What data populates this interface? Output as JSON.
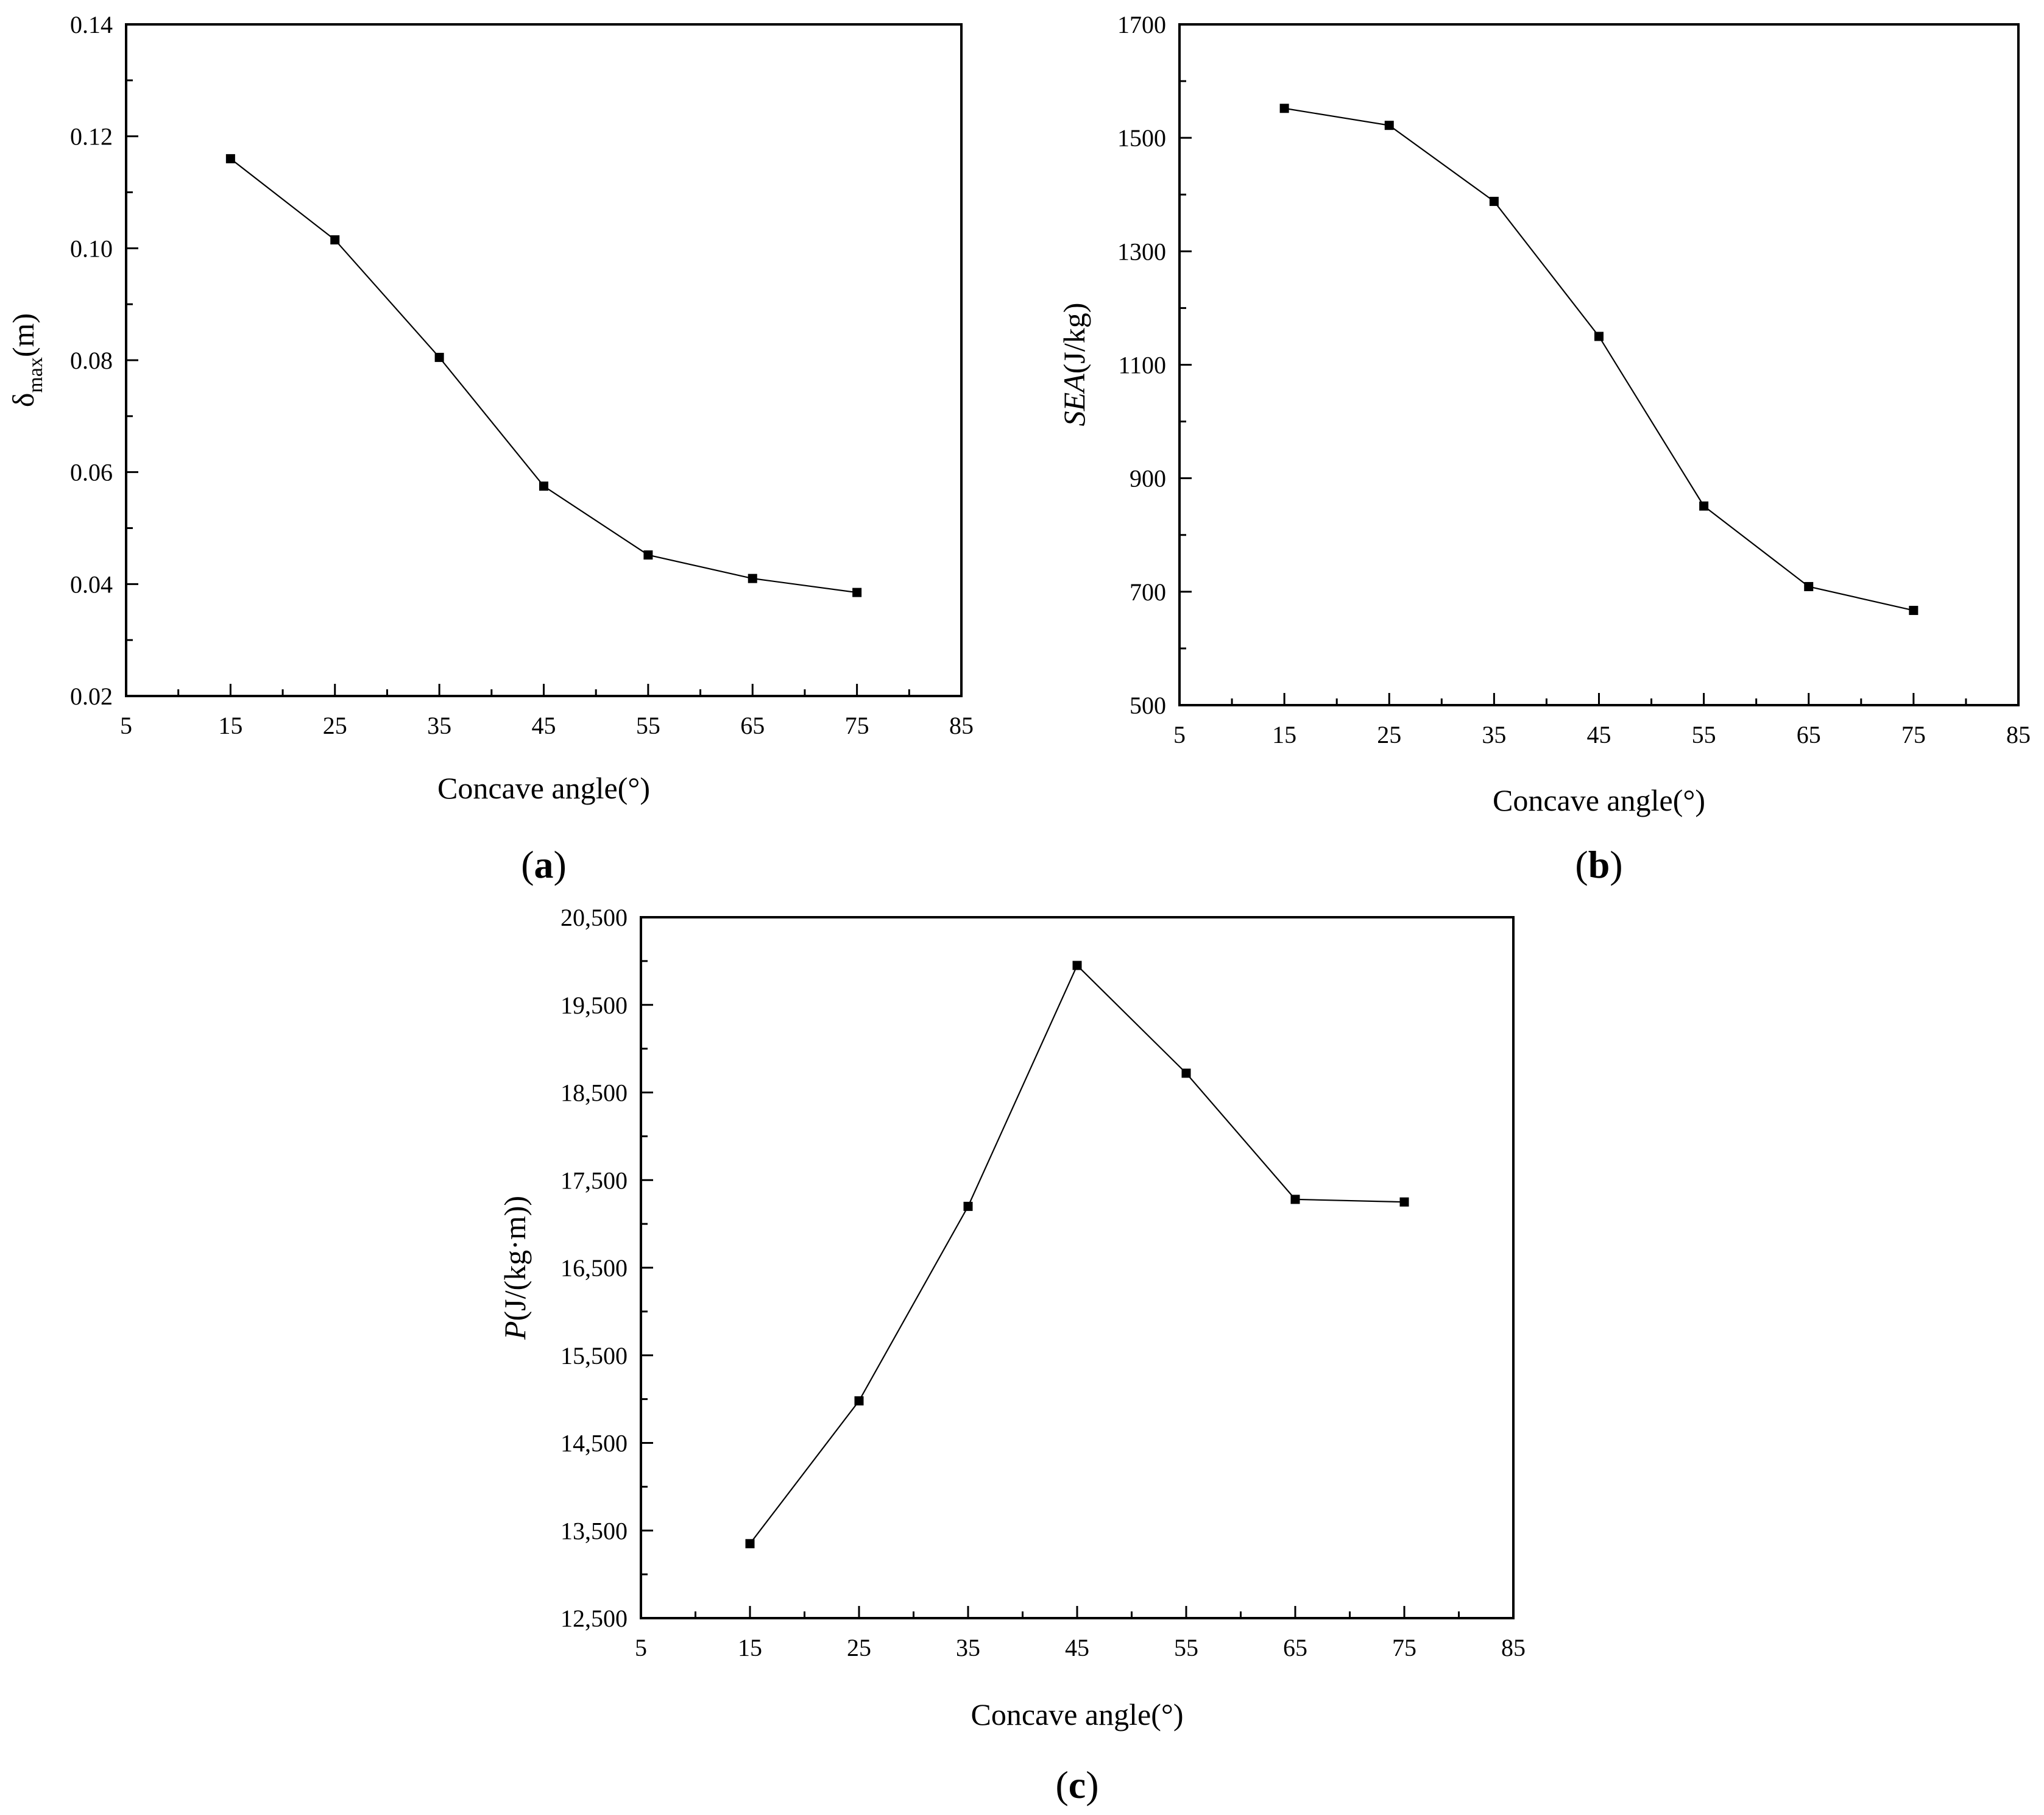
{
  "chart_data": [
    {
      "type": "line",
      "panel_label": "a",
      "x": [
        15,
        25,
        35,
        45,
        55,
        65,
        75
      ],
      "series": [
        {
          "values": [
            0.116,
            0.1015,
            0.0805,
            0.0575,
            0.0452,
            0.041,
            0.0385
          ]
        }
      ],
      "xlabel": "Concave angle(°)",
      "ylabel_main": "δ",
      "ylabel_sub": "max",
      "ylabel_unit": "(m)",
      "xlim": [
        5,
        85
      ],
      "ylim": [
        0.02,
        0.14
      ],
      "xticks": [
        "5",
        "15",
        "25",
        "35",
        "45",
        "55",
        "65",
        "75",
        "85"
      ],
      "yticks": [
        "0.02",
        "0.04",
        "0.06",
        "0.08",
        "0.10",
        "0.12",
        "0.14"
      ],
      "grid": false
    },
    {
      "type": "line",
      "panel_label": "b",
      "x": [
        15,
        25,
        35,
        45,
        55,
        65,
        75
      ],
      "series": [
        {
          "values": [
            1552,
            1522,
            1388,
            1150,
            851,
            709,
            667
          ]
        }
      ],
      "xlabel": "Concave angle(°)",
      "ylabel_main": "SEA",
      "ylabel_unit": "(J/kg)",
      "xlim": [
        5,
        85
      ],
      "ylim": [
        500,
        1700
      ],
      "xticks": [
        "5",
        "15",
        "25",
        "35",
        "45",
        "55",
        "65",
        "75",
        "85"
      ],
      "yticks": [
        "500",
        "700",
        "900",
        "1100",
        "1300",
        "1500",
        "1700"
      ],
      "grid": false
    },
    {
      "type": "line",
      "panel_label": "c",
      "x": [
        15,
        25,
        35,
        45,
        55,
        65,
        75
      ],
      "series": [
        {
          "values": [
            13350,
            14980,
            17200,
            19950,
            18720,
            17280,
            17250
          ]
        }
      ],
      "xlabel": "Concave angle(°)",
      "ylabel_main": "P",
      "ylabel_unit": "(J/(kg·m))",
      "xlim": [
        5,
        85
      ],
      "ylim": [
        12500,
        20500
      ],
      "xticks": [
        "5",
        "15",
        "25",
        "35",
        "45",
        "55",
        "65",
        "75",
        "85"
      ],
      "yticks": [
        "12,500",
        "13,500",
        "14,500",
        "15,500",
        "16,500",
        "17,500",
        "18,500",
        "19,500",
        "20,500"
      ],
      "grid": false
    }
  ]
}
